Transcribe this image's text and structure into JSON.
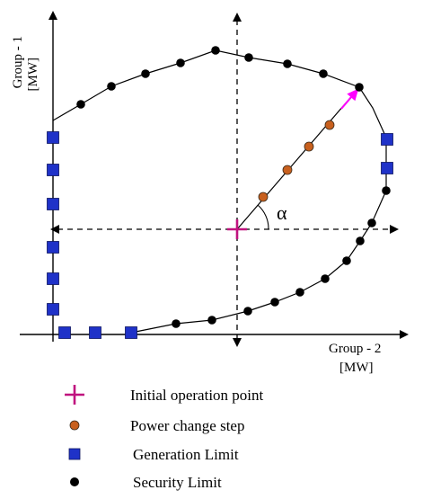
{
  "axes": {
    "y_label_line1": "Group - 1",
    "y_label_line2": "[MW]",
    "x_label_line1": "Group - 2",
    "x_label_line2": "[MW]"
  },
  "angle_label": "α",
  "legend": {
    "initial_point": "Initial operation point",
    "power_step": "Power change step",
    "generation_limit": "Generation Limit",
    "security_limit": "Security Limit"
  },
  "colors": {
    "initial_point": "#c0137f",
    "power_step": "#c8601e",
    "generation_limit": "#1f32c8",
    "security_limit": "#000000",
    "direction_arrow": "#ff00ff"
  },
  "markers": {
    "security_limit_count": 19,
    "generation_limit_count": 11,
    "power_step_count": 4
  }
}
